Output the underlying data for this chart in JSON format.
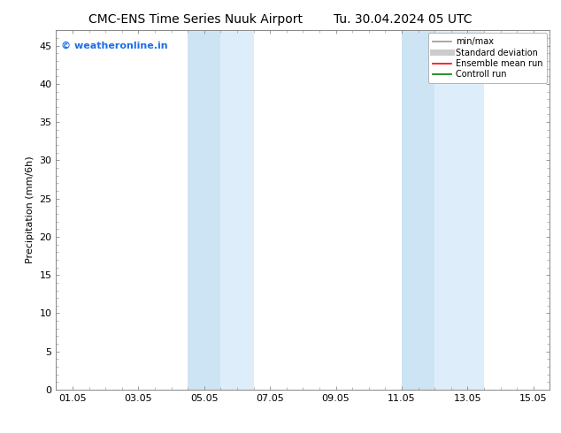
{
  "title_left": "CMC-ENS Time Series Nuuk Airport",
  "title_right": "Tu. 30.04.2024 05 UTC",
  "ylabel": "Precipitation (mm/6h)",
  "xlabel": "",
  "ylim": [
    0,
    47
  ],
  "yticks": [
    0,
    5,
    10,
    15,
    20,
    25,
    30,
    35,
    40,
    45
  ],
  "xtick_labels": [
    "01.05",
    "03.05",
    "05.05",
    "07.05",
    "09.05",
    "11.05",
    "13.05",
    "15.05"
  ],
  "xtick_positions": [
    0,
    2,
    4,
    6,
    8,
    10,
    12,
    14
  ],
  "xlim": [
    -0.5,
    14.5
  ],
  "shaded_regions": [
    {
      "x_start": 3.5,
      "x_end": 4.5,
      "color": "#cde4f4"
    },
    {
      "x_start": 4.5,
      "x_end": 5.5,
      "color": "#ddeefa"
    },
    {
      "x_start": 10.0,
      "x_end": 11.0,
      "color": "#cde4f4"
    },
    {
      "x_start": 11.0,
      "x_end": 12.5,
      "color": "#ddeefa"
    }
  ],
  "watermark_text": "© weatheronline.in",
  "watermark_color": "#1c6ee8",
  "watermark_fontsize": 8,
  "legend_entries": [
    {
      "label": "min/max",
      "color": "#999999",
      "lw": 1.2,
      "style": "-"
    },
    {
      "label": "Standard deviation",
      "color": "#cccccc",
      "lw": 5,
      "style": "-"
    },
    {
      "label": "Ensemble mean run",
      "color": "#ff0000",
      "lw": 1.2,
      "style": "-"
    },
    {
      "label": "Controll run",
      "color": "#008000",
      "lw": 1.2,
      "style": "-"
    }
  ],
  "bg_color": "#ffffff",
  "plot_bg_color": "#ffffff",
  "title_fontsize": 10,
  "tick_fontsize": 8,
  "label_fontsize": 8,
  "spine_color": "#888888"
}
